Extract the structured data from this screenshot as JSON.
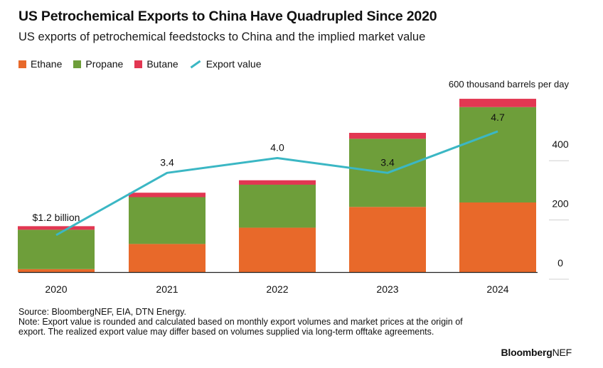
{
  "header": {
    "title": "US Petrochemical Exports to China Have Quadrupled Since 2020",
    "subtitle": "US exports of petrochemical feedstocks to China and the implied market value"
  },
  "legend": {
    "ethane": "Ethane",
    "propane": "Propane",
    "butane": "Butane",
    "export_value": "Export value"
  },
  "colors": {
    "ethane": "#e8692a",
    "propane": "#6e9e3a",
    "butane": "#e23752",
    "export_value": "#3bb7c4"
  },
  "chart_data": {
    "type": "bar",
    "stacked": true,
    "categories": [
      "2020",
      "2021",
      "2022",
      "2023",
      "2024"
    ],
    "series": [
      {
        "name": "Ethane",
        "values": [
          10,
          95,
          150,
          220,
          235
        ]
      },
      {
        "name": "Propane",
        "values": [
          133,
          158,
          145,
          230,
          322
        ]
      },
      {
        "name": "Butane",
        "values": [
          12,
          15,
          15,
          20,
          28
        ]
      }
    ],
    "line_series": {
      "name": "Export value",
      "values": [
        1.2,
        3.4,
        4.0,
        3.4,
        4.7
      ],
      "labels": [
        "$1.2 billion",
        "3.4",
        "4.0",
        "3.4",
        "4.7"
      ],
      "y_positions_barrels": [
        125,
        335,
        385,
        335,
        475
      ]
    },
    "ylabel": "600 thousand barrels per day",
    "ylim": [
      0,
      600
    ],
    "yticks": [
      "0",
      "200",
      "400"
    ],
    "ytick_values": [
      0,
      200,
      400
    ],
    "y_axis_side": "right"
  },
  "footer": {
    "source": "Source: BloombergNEF, EIA, DTN Energy.",
    "note": "Note: Export value is rounded and calculated based on monthly export volumes and market prices at the origin of export. The realized export value may differ based on volumes supplied via long-term offtake agreements."
  },
  "brand": {
    "main": "Bloomberg",
    "suffix": "NEF"
  }
}
